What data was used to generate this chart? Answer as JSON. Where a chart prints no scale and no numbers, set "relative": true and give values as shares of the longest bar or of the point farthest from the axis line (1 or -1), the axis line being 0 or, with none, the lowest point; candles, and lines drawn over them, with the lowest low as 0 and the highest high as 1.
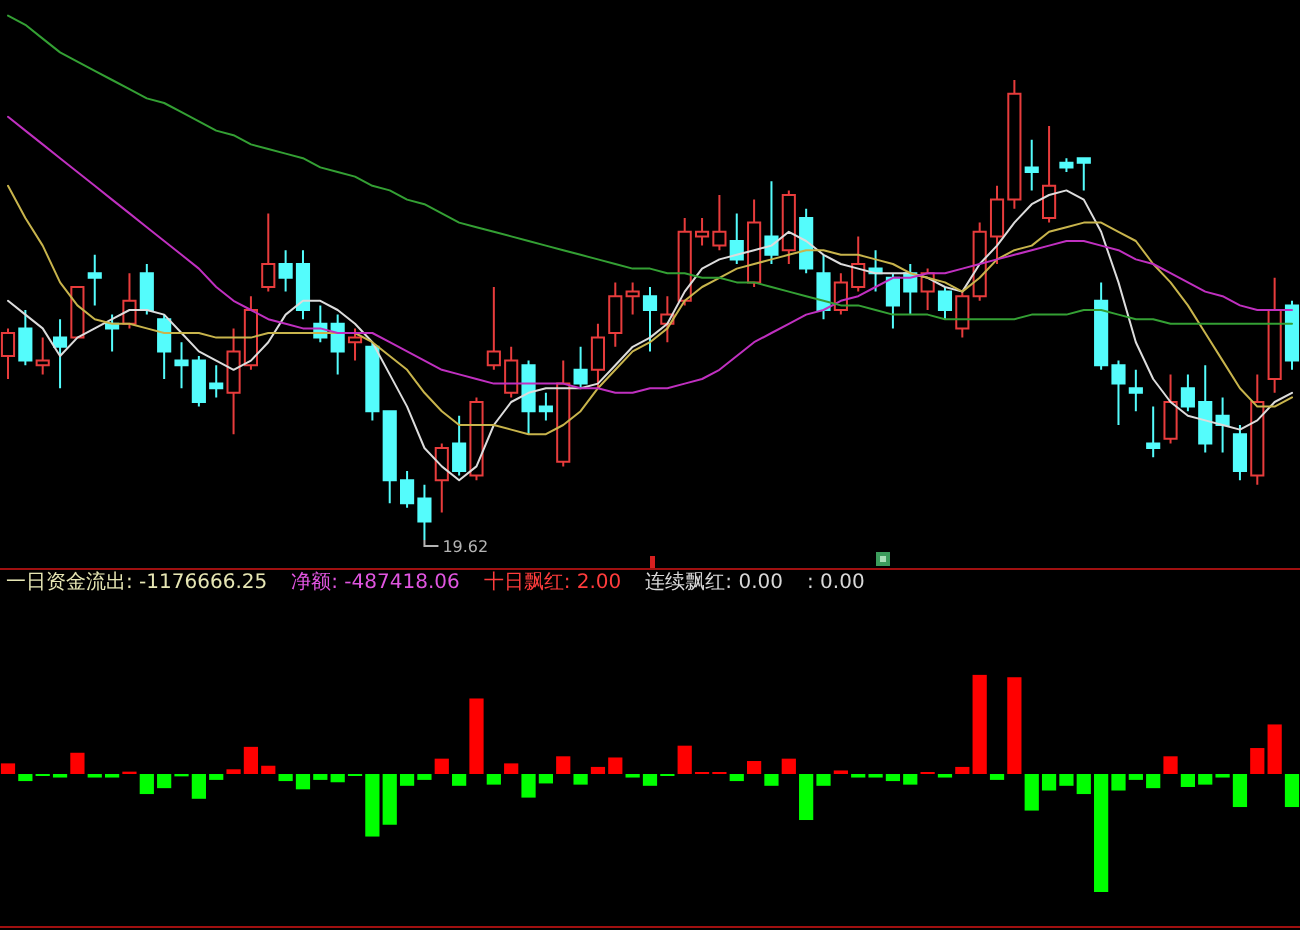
{
  "chart_data": [
    {
      "type": "candlestick",
      "relative": true,
      "categories": [
        null,
        null,
        null,
        null,
        null,
        null,
        null,
        null,
        null,
        null,
        null,
        null,
        null,
        null,
        null,
        null,
        null,
        null,
        null,
        null,
        null,
        null,
        null,
        null,
        null,
        null,
        null,
        null,
        null,
        null,
        null,
        null,
        null,
        null,
        null,
        null,
        null,
        null,
        null,
        null,
        null,
        null,
        null,
        null,
        null,
        null,
        null,
        null,
        null,
        null,
        null,
        null,
        null,
        null,
        null,
        null,
        null,
        null,
        null,
        null,
        null,
        null,
        null,
        null,
        null,
        null,
        null,
        null,
        null,
        null,
        null,
        null,
        null,
        null,
        null
      ],
      "ohlc": [
        [
          0.4,
          0.46,
          0.35,
          0.45
        ],
        [
          0.46,
          0.5,
          0.38,
          0.39
        ],
        [
          0.38,
          0.44,
          0.36,
          0.39
        ],
        [
          0.44,
          0.48,
          0.33,
          0.42
        ],
        [
          0.44,
          0.55,
          0.44,
          0.55
        ],
        [
          0.58,
          0.62,
          0.51,
          0.57
        ],
        [
          0.47,
          0.49,
          0.41,
          0.46
        ],
        [
          0.47,
          0.58,
          0.46,
          0.52
        ],
        [
          0.58,
          0.6,
          0.49,
          0.5
        ],
        [
          0.48,
          0.49,
          0.35,
          0.41
        ],
        [
          0.39,
          0.43,
          0.33,
          0.38
        ],
        [
          0.39,
          0.4,
          0.29,
          0.3
        ],
        [
          0.34,
          0.38,
          0.31,
          0.33
        ],
        [
          0.32,
          0.46,
          0.23,
          0.41
        ],
        [
          0.38,
          0.53,
          0.37,
          0.5
        ],
        [
          0.55,
          0.71,
          0.54,
          0.6
        ],
        [
          0.6,
          0.63,
          0.54,
          0.57
        ],
        [
          0.6,
          0.63,
          0.48,
          0.5
        ],
        [
          0.47,
          0.51,
          0.43,
          0.44
        ],
        [
          0.47,
          0.49,
          0.36,
          0.41
        ],
        [
          0.43,
          0.46,
          0.39,
          0.44
        ],
        [
          0.42,
          0.43,
          0.26,
          0.28
        ],
        [
          0.28,
          0.28,
          0.08,
          0.13
        ],
        [
          0.13,
          0.15,
          0.07,
          0.08
        ],
        [
          0.09,
          0.12,
          0,
          0.04
        ],
        [
          0.13,
          0.21,
          0.06,
          0.2
        ],
        [
          0.21,
          0.27,
          0.14,
          0.15
        ],
        [
          0.14,
          0.31,
          0.13,
          0.3
        ],
        [
          0.38,
          0.55,
          0.37,
          0.41
        ],
        [
          0.32,
          0.42,
          0.31,
          0.39
        ],
        [
          0.38,
          0.39,
          0.23,
          0.28
        ],
        [
          0.29,
          0.32,
          0.26,
          0.28
        ],
        [
          0.17,
          0.39,
          0.16,
          0.34
        ],
        [
          0.37,
          0.42,
          0.33,
          0.34
        ],
        [
          0.37,
          0.47,
          0.33,
          0.44
        ],
        [
          0.45,
          0.56,
          0.42,
          0.53
        ],
        [
          0.53,
          0.56,
          0.49,
          0.54
        ],
        [
          0.53,
          0.55,
          0.41,
          0.5
        ],
        [
          0.47,
          0.53,
          0.43,
          0.49
        ],
        [
          0.52,
          0.7,
          0.51,
          0.67
        ],
        [
          0.66,
          0.7,
          0.64,
          0.67
        ],
        [
          0.64,
          0.75,
          0.63,
          0.67
        ],
        [
          0.65,
          0.71,
          0.6,
          0.61
        ],
        [
          0.56,
          0.74,
          0.55,
          0.69
        ],
        [
          0.66,
          0.78,
          0.6,
          0.62
        ],
        [
          0.63,
          0.76,
          0.6,
          0.75
        ],
        [
          0.7,
          0.72,
          0.58,
          0.59
        ],
        [
          0.58,
          0.62,
          0.48,
          0.5
        ],
        [
          0.5,
          0.58,
          0.49,
          0.56
        ],
        [
          0.55,
          0.66,
          0.54,
          0.6
        ],
        [
          0.59,
          0.63,
          0.54,
          0.58
        ],
        [
          0.57,
          0.58,
          0.46,
          0.51
        ],
        [
          0.58,
          0.6,
          0.49,
          0.54
        ],
        [
          0.54,
          0.59,
          0.5,
          0.58
        ],
        [
          0.54,
          0.55,
          0.48,
          0.5
        ],
        [
          0.46,
          0.54,
          0.44,
          0.53
        ],
        [
          0.53,
          0.69,
          0.52,
          0.67
        ],
        [
          0.66,
          0.77,
          0.6,
          0.74
        ],
        [
          0.74,
          1,
          0.72,
          0.97
        ],
        [
          0.81,
          0.87,
          0.76,
          0.8
        ],
        [
          0.7,
          0.9,
          0.69,
          0.77
        ],
        [
          0.82,
          0.83,
          0.8,
          0.81
        ],
        [
          0.83,
          0.83,
          0.76,
          0.82
        ],
        [
          0.52,
          0.56,
          0.37,
          0.38
        ],
        [
          0.38,
          0.39,
          0.25,
          0.34
        ],
        [
          0.33,
          0.37,
          0.28,
          0.32
        ],
        [
          0.21,
          0.29,
          0.18,
          0.2
        ],
        [
          0.22,
          0.36,
          0.21,
          0.3
        ],
        [
          0.33,
          0.36,
          0.28,
          0.29
        ],
        [
          0.3,
          0.38,
          0.19,
          0.21
        ],
        [
          0.27,
          0.31,
          0.19,
          0.25
        ],
        [
          0.23,
          0.25,
          0.13,
          0.15
        ],
        [
          0.14,
          0.36,
          0.12,
          0.3
        ],
        [
          0.35,
          0.57,
          0.32,
          0.5
        ],
        [
          0.51,
          0.52,
          0.37,
          0.39
        ]
      ],
      "colors": [
        "#e83c3c",
        "#54fcfc",
        "#e83c3c",
        "#54fcfc",
        "#e83c3c",
        "#54fcfc",
        "#54fcfc",
        "#e83c3c",
        "#54fcfc",
        "#54fcfc",
        "#54fcfc",
        "#54fcfc",
        "#54fcfc",
        "#e83c3c",
        "#e83c3c",
        "#e83c3c",
        "#54fcfc",
        "#54fcfc",
        "#54fcfc",
        "#54fcfc",
        "#e83c3c",
        "#54fcfc",
        "#54fcfc",
        "#54fcfc",
        "#54fcfc",
        "#e83c3c",
        "#54fcfc",
        "#e83c3c",
        "#e83c3c",
        "#e83c3c",
        "#54fcfc",
        "#54fcfc",
        "#e83c3c",
        "#54fcfc",
        "#e83c3c",
        "#e83c3c",
        "#e83c3c",
        "#54fcfc",
        "#e83c3c",
        "#e83c3c",
        "#e83c3c",
        "#e83c3c",
        "#54fcfc",
        "#e83c3c",
        "#54fcfc",
        "#e83c3c",
        "#54fcfc",
        "#54fcfc",
        "#e83c3c",
        "#e83c3c",
        "#54fcfc",
        "#54fcfc",
        "#54fcfc",
        "#e83c3c",
        "#54fcfc",
        "#e83c3c",
        "#e83c3c",
        "#e83c3c",
        "#e83c3c",
        "#54fcfc",
        "#e83c3c",
        "#54fcfc",
        "#54fcfc",
        "#54fcfc",
        "#54fcfc",
        "#54fcfc",
        "#54fcfc",
        "#e83c3c",
        "#54fcfc",
        "#54fcfc",
        "#54fcfc",
        "#54fcfc",
        "#e83c3c",
        "#e83c3c",
        "#54fcfc"
      ],
      "series": [
        {
          "type": "line",
          "color": "#dcdcdc",
          "values": [
            0.52,
            0.49,
            0.46,
            0.4,
            0.44,
            0.46,
            0.48,
            0.5,
            0.5,
            0.49,
            0.45,
            0.41,
            0.39,
            0.37,
            0.39,
            0.43,
            0.49,
            0.52,
            0.52,
            0.5,
            0.47,
            0.43,
            0.36,
            0.29,
            0.2,
            0.16,
            0.13,
            0.16,
            0.25,
            0.3,
            0.32,
            0.33,
            0.33,
            0.33,
            0.34,
            0.38,
            0.42,
            0.44,
            0.47,
            0.54,
            0.59,
            0.61,
            0.62,
            0.63,
            0.64,
            0.67,
            0.65,
            0.62,
            0.6,
            0.59,
            0.58,
            0.58,
            0.58,
            0.57,
            0.55,
            0.54,
            0.6,
            0.64,
            0.69,
            0.73,
            0.75,
            0.76,
            0.74,
            0.67,
            0.56,
            0.43,
            0.35,
            0.3,
            0.27,
            0.26,
            0.25,
            0.24,
            0.26,
            0.3,
            0.32
          ]
        },
        {
          "type": "line",
          "color": "#c8b44c",
          "values": [
            0.77,
            0.7,
            0.64,
            0.56,
            0.51,
            0.48,
            0.47,
            0.47,
            0.46,
            0.45,
            0.45,
            0.45,
            0.44,
            0.44,
            0.44,
            0.45,
            0.45,
            0.45,
            0.45,
            0.45,
            0.45,
            0.43,
            0.4,
            0.37,
            0.32,
            0.28,
            0.25,
            0.25,
            0.25,
            0.24,
            0.23,
            0.23,
            0.25,
            0.28,
            0.33,
            0.37,
            0.41,
            0.43,
            0.46,
            0.52,
            0.55,
            0.57,
            0.59,
            0.6,
            0.61,
            0.62,
            0.63,
            0.63,
            0.62,
            0.62,
            0.61,
            0.6,
            0.58,
            0.57,
            0.56,
            0.54,
            0.57,
            0.61,
            0.63,
            0.64,
            0.67,
            0.68,
            0.69,
            0.69,
            0.67,
            0.65,
            0.6,
            0.56,
            0.51,
            0.45,
            0.39,
            0.33,
            0.29,
            0.29,
            0.31
          ]
        },
        {
          "type": "line",
          "color": "#c030c0",
          "values": [
            0.92,
            0.89,
            0.86,
            0.83,
            0.8,
            0.77,
            0.74,
            0.71,
            0.68,
            0.65,
            0.62,
            0.59,
            0.55,
            0.52,
            0.5,
            0.48,
            0.47,
            0.46,
            0.46,
            0.45,
            0.45,
            0.45,
            0.43,
            0.41,
            0.39,
            0.37,
            0.36,
            0.35,
            0.34,
            0.34,
            0.34,
            0.34,
            0.34,
            0.33,
            0.33,
            0.32,
            0.32,
            0.33,
            0.33,
            0.34,
            0.35,
            0.37,
            0.4,
            0.43,
            0.45,
            0.47,
            0.49,
            0.5,
            0.52,
            0.53,
            0.55,
            0.57,
            0.57,
            0.58,
            0.58,
            0.59,
            0.6,
            0.61,
            0.62,
            0.63,
            0.64,
            0.65,
            0.65,
            0.64,
            0.63,
            0.61,
            0.6,
            0.58,
            0.56,
            0.54,
            0.53,
            0.51,
            0.5,
            0.5,
            0.5
          ]
        },
        {
          "type": "line",
          "color": "#34a034",
          "values": [
            1.14,
            1.12,
            1.09,
            1.06,
            1.04,
            1.02,
            1.0,
            0.98,
            0.96,
            0.95,
            0.93,
            0.91,
            0.89,
            0.88,
            0.86,
            0.85,
            0.84,
            0.83,
            0.81,
            0.8,
            0.79,
            0.77,
            0.76,
            0.74,
            0.73,
            0.71,
            0.69,
            0.68,
            0.67,
            0.66,
            0.65,
            0.64,
            0.63,
            0.62,
            0.61,
            0.6,
            0.59,
            0.59,
            0.58,
            0.58,
            0.57,
            0.57,
            0.56,
            0.56,
            0.55,
            0.54,
            0.53,
            0.52,
            0.51,
            0.51,
            0.5,
            0.49,
            0.49,
            0.49,
            0.48,
            0.48,
            0.48,
            0.48,
            0.48,
            0.49,
            0.49,
            0.49,
            0.5,
            0.5,
            0.49,
            0.48,
            0.48,
            0.47,
            0.47,
            0.47,
            0.47,
            0.47,
            0.47,
            0.47,
            0.47
          ]
        }
      ],
      "annotations": [
        "19.62"
      ]
    },
    {
      "type": "bar",
      "relative": true,
      "categories": [
        null,
        null,
        null,
        null,
        null,
        null,
        null,
        null,
        null,
        null,
        null,
        null,
        null,
        null,
        null,
        null,
        null,
        null,
        null,
        null,
        null,
        null,
        null,
        null,
        null,
        null,
        null,
        null,
        null,
        null,
        null,
        null,
        null,
        null,
        null,
        null,
        null,
        null,
        null,
        null,
        null,
        null,
        null,
        null,
        null,
        null,
        null,
        null,
        null,
        null,
        null,
        null,
        null,
        null,
        null,
        null,
        null,
        null,
        null,
        null,
        null,
        null,
        null,
        null,
        null,
        null,
        null,
        null,
        null,
        null,
        null,
        null,
        null,
        null,
        null
      ],
      "values": [
        0.09,
        -0.06,
        -0.01,
        -0.03,
        0.18,
        -0.03,
        -0.03,
        0.02,
        -0.17,
        -0.12,
        -0.02,
        -0.21,
        -0.05,
        0.04,
        0.23,
        0.07,
        -0.06,
        -0.13,
        -0.05,
        -0.07,
        -0.01,
        -0.53,
        -0.43,
        -0.1,
        -0.05,
        0.13,
        -0.1,
        0.64,
        -0.09,
        0.09,
        -0.2,
        -0.08,
        0.15,
        -0.09,
        0.06,
        0.14,
        -0.03,
        -0.1,
        -0.01,
        0.24,
        0.01,
        0.01,
        -0.06,
        0.11,
        -0.1,
        0.13,
        -0.39,
        -0.1,
        0.03,
        -0.03,
        -0.03,
        -0.06,
        -0.09,
        0.01,
        -0.03,
        0.06,
        0.84,
        -0.05,
        0.82,
        -0.31,
        -0.14,
        -0.1,
        -0.17,
        -1,
        -0.14,
        -0.05,
        -0.12,
        0.15,
        -0.11,
        -0.09,
        -0.03,
        -0.28,
        0.22,
        0.42,
        -0.28
      ],
      "colors": [
        "#ff0000",
        "#00ff00",
        "#00ff00",
        "#00ff00",
        "#ff0000",
        "#00ff00",
        "#00ff00",
        "#ff0000",
        "#00ff00",
        "#00ff00",
        "#00ff00",
        "#00ff00",
        "#00ff00",
        "#ff0000",
        "#ff0000",
        "#ff0000",
        "#00ff00",
        "#00ff00",
        "#00ff00",
        "#00ff00",
        "#00ff00",
        "#00ff00",
        "#00ff00",
        "#00ff00",
        "#00ff00",
        "#ff0000",
        "#00ff00",
        "#ff0000",
        "#00ff00",
        "#ff0000",
        "#00ff00",
        "#00ff00",
        "#ff0000",
        "#00ff00",
        "#ff0000",
        "#ff0000",
        "#00ff00",
        "#00ff00",
        "#00ff00",
        "#ff0000",
        "#ff0000",
        "#ff0000",
        "#00ff00",
        "#ff0000",
        "#00ff00",
        "#ff0000",
        "#00ff00",
        "#00ff00",
        "#ff0000",
        "#00ff00",
        "#00ff00",
        "#00ff00",
        "#00ff00",
        "#ff0000",
        "#00ff00",
        "#ff0000",
        "#ff0000",
        "#00ff00",
        "#ff0000",
        "#00ff00",
        "#00ff00",
        "#00ff00",
        "#00ff00",
        "#00ff00",
        "#00ff00",
        "#00ff00",
        "#00ff00",
        "#ff0000",
        "#00ff00",
        "#00ff00",
        "#00ff00",
        "#00ff00",
        "#ff0000",
        "#ff0000",
        "#00ff00"
      ],
      "annotations": [
        "一日资金流出: -1176666.25",
        "净额: -487418.06",
        "十日飘红: 2.00",
        "连续飘红: 0.00",
        ": 0.00"
      ]
    }
  ]
}
